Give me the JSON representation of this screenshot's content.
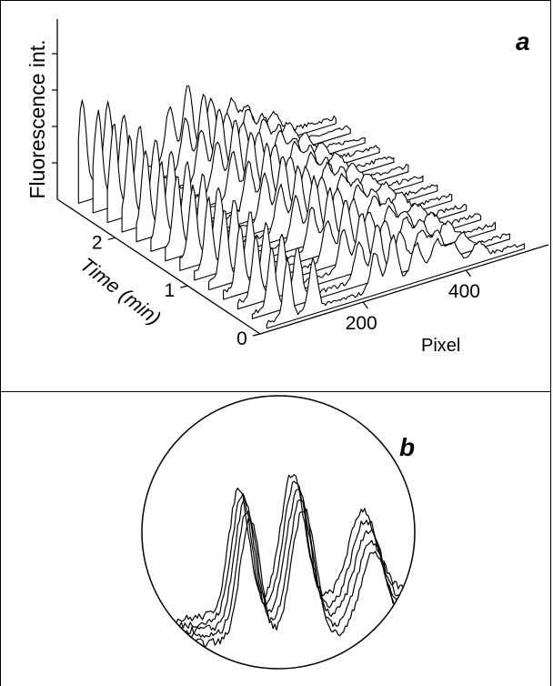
{
  "figure": {
    "panel_a_label": "a",
    "panel_b_label": "b"
  },
  "chart_data": [
    {
      "type": "line",
      "panel": "a",
      "style": "waterfall / stacked 3D traces",
      "title": "",
      "ylabel": "Fluorescence int.",
      "xlabel": "Pixel",
      "depth_label": "Time (min)",
      "x_ticks": [
        "200",
        "400"
      ],
      "depth_ticks": [
        "0",
        "1",
        "2"
      ],
      "xlim": [
        0,
        560
      ],
      "depth_lim": [
        0,
        2.8
      ],
      "y_ticks_visible": false,
      "grid": false,
      "series_count": 14,
      "peaks": [
        {
          "pixel": 60,
          "height": 0.85
        },
        {
          "pixel": 110,
          "height": 0.75
        },
        {
          "pixel": 230,
          "height": 0.55
        },
        {
          "pixel": 265,
          "height": 0.72
        },
        {
          "pixel": 310,
          "height": 0.5
        },
        {
          "pixel": 350,
          "height": 0.45
        },
        {
          "pixel": 380,
          "height": 0.35
        },
        {
          "pixel": 430,
          "height": 0.22
        }
      ],
      "colors": {
        "line": "#000000",
        "background": "#ffffff"
      }
    },
    {
      "type": "line",
      "panel": "b",
      "style": "magnified inset (circular)",
      "title": "",
      "series_count": 5,
      "peaks": [
        {
          "position": 0.36,
          "height": 0.8
        },
        {
          "position": 0.55,
          "height": 0.85
        },
        {
          "position": 0.8,
          "height": 0.55
        }
      ],
      "colors": {
        "line": "#000000",
        "background": "#ffffff"
      }
    }
  ]
}
